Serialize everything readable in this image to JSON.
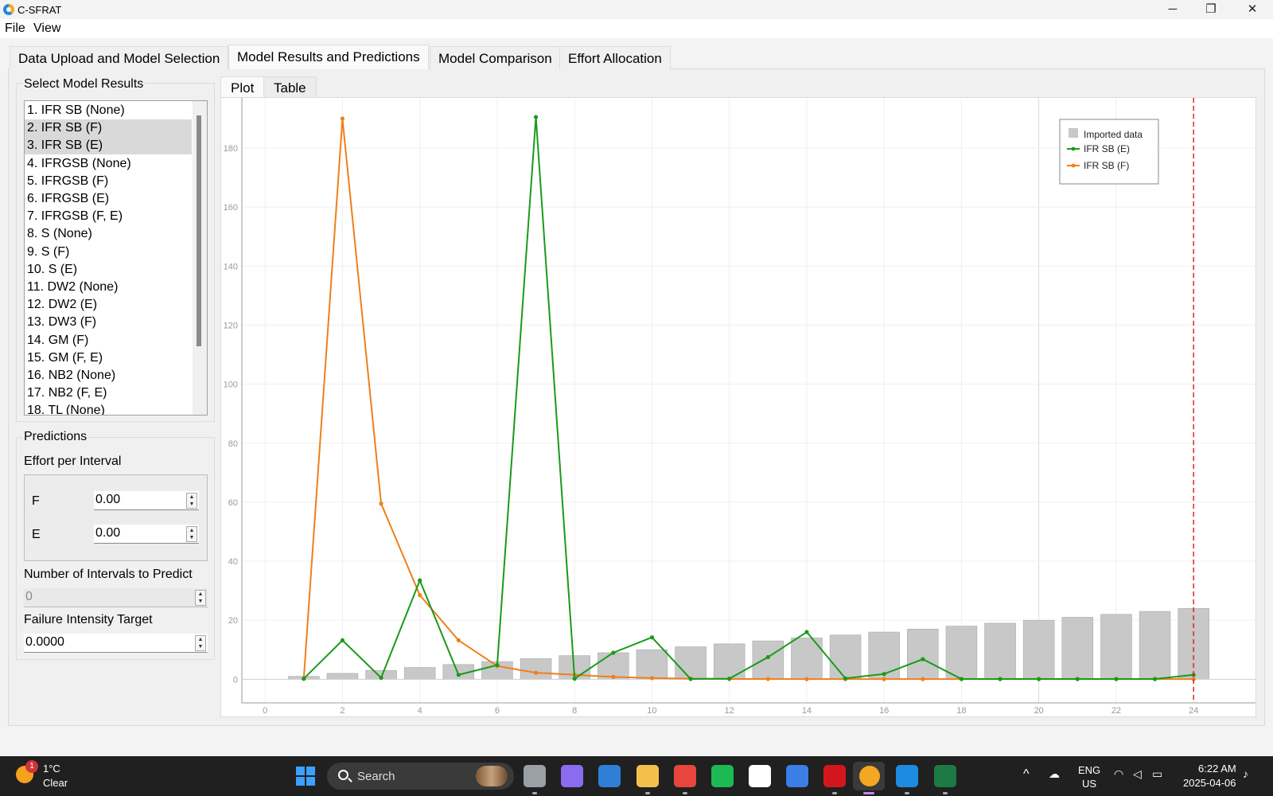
{
  "window": {
    "title": "C-SFRAT",
    "minimize": "─",
    "restore": "❐",
    "close": "✕"
  },
  "menu": [
    "File",
    "View"
  ],
  "tabs": [
    {
      "label": "Data Upload and Model Selection",
      "active": false
    },
    {
      "label": "Model Results and Predictions",
      "active": true
    },
    {
      "label": "Model Comparison",
      "active": false
    },
    {
      "label": "Effort Allocation",
      "active": false
    }
  ],
  "select_model": {
    "title": "Select Model Results",
    "items": [
      {
        "label": "1. IFR SB (None)",
        "selected": false
      },
      {
        "label": "2. IFR SB (F)",
        "selected": true
      },
      {
        "label": "3. IFR SB (E)",
        "selected": true
      },
      {
        "label": "4. IFRGSB (None)",
        "selected": false
      },
      {
        "label": "5. IFRGSB (F)",
        "selected": false
      },
      {
        "label": "6. IFRGSB (E)",
        "selected": false
      },
      {
        "label": "7. IFRGSB (F, E)",
        "selected": false
      },
      {
        "label": "8. S (None)",
        "selected": false
      },
      {
        "label": "9. S (F)",
        "selected": false
      },
      {
        "label": "10. S (E)",
        "selected": false
      },
      {
        "label": "11. DW2 (None)",
        "selected": false
      },
      {
        "label": "12. DW2 (E)",
        "selected": false
      },
      {
        "label": "13. DW3 (F)",
        "selected": false
      },
      {
        "label": "14. GM (F)",
        "selected": false
      },
      {
        "label": "15. GM (F, E)",
        "selected": false
      },
      {
        "label": "16. NB2 (None)",
        "selected": false
      },
      {
        "label": "17. NB2 (F, E)",
        "selected": false
      },
      {
        "label": "18. TL (None)",
        "selected": false
      }
    ]
  },
  "predictions": {
    "title": "Predictions",
    "effort_label": "Effort per Interval",
    "f_label": "F",
    "f_value": "0.00",
    "e_label": "E",
    "e_value": "0.00",
    "intervals_label": "Number of Intervals to Predict",
    "intervals_value": "0",
    "target_label": "Failure Intensity Target",
    "target_value": "0.0000"
  },
  "subtabs": [
    {
      "label": "Plot",
      "active": true
    },
    {
      "label": "Table",
      "active": false
    }
  ],
  "chart_data": {
    "type": "bar+line",
    "x_ticks": [
      0,
      2,
      4,
      6,
      8,
      10,
      12,
      14,
      16,
      18,
      20,
      22,
      24
    ],
    "y_ticks": [
      0,
      20,
      40,
      60,
      80,
      100,
      120,
      140,
      160,
      180
    ],
    "xlim": [
      -0.6,
      25.6
    ],
    "ylim": [
      -8,
      197
    ],
    "grid": true,
    "legend_position": "top-right",
    "bars": {
      "name": "Imported data",
      "color": "#c8c8c8",
      "x": [
        1,
        2,
        3,
        4,
        5,
        6,
        7,
        8,
        9,
        10,
        11,
        12,
        13,
        14,
        15,
        16,
        17,
        18,
        19,
        20,
        21,
        22,
        23,
        24
      ],
      "values": [
        1,
        2,
        3,
        4,
        5,
        6,
        7,
        8,
        9,
        10,
        11,
        12,
        13,
        14,
        15,
        16,
        17,
        18,
        19,
        20,
        21,
        22,
        23,
        24
      ]
    },
    "series": [
      {
        "name": "IFR SB (E)",
        "color": "#1a9a1a",
        "x": [
          1,
          2,
          3,
          4,
          5,
          6,
          7,
          8,
          9,
          10,
          11,
          12,
          13,
          14,
          15,
          16,
          17,
          18,
          19,
          20,
          21,
          22,
          23,
          24
        ],
        "values": [
          0.2,
          13.2,
          0.5,
          33.5,
          1.5,
          4.8,
          190.5,
          0.2,
          9,
          14.2,
          0.1,
          0.2,
          7.5,
          16,
          0.3,
          1.8,
          6.8,
          0.1,
          0.1,
          0.1,
          0.1,
          0.1,
          0.1,
          1.5
        ]
      },
      {
        "name": "IFR SB (F)",
        "color": "#f07f1a",
        "x": [
          1,
          2,
          3,
          4,
          5,
          6,
          7,
          8,
          9,
          10,
          11,
          12,
          13,
          14,
          15,
          16,
          17,
          18,
          19,
          20,
          21,
          22,
          23,
          24
        ],
        "values": [
          0.2,
          190,
          59.5,
          28.5,
          13.2,
          4.5,
          2.2,
          1.5,
          0.8,
          0.4,
          0.2,
          0.1,
          0.1,
          0.05,
          0.05,
          0.05,
          0.05,
          0.05,
          0.05,
          0.05,
          0.05,
          0.05,
          0.05,
          0.05
        ]
      }
    ],
    "marker_line": {
      "x": 24,
      "color": "#e0202a",
      "style": "dashed"
    }
  },
  "taskbar": {
    "weather_temp": "1°C",
    "weather_desc": "Clear",
    "weather_badge": "1",
    "search_label": "Search",
    "lang_top": "ENG",
    "lang_bottom": "US",
    "time": "6:22 AM",
    "date": "2025-04-06",
    "tray_chevron": "^",
    "icons": [
      {
        "name": "task-view-icon",
        "color": "#9aa0a6"
      },
      {
        "name": "copilot-icon",
        "color": "#8b6cf0"
      },
      {
        "name": "ms-store-icon",
        "color": "#2f7fd7"
      },
      {
        "name": "file-explorer-icon",
        "color": "#f3c14b"
      },
      {
        "name": "chrome-icon",
        "color": "#e8453c"
      },
      {
        "name": "spotify-icon",
        "color": "#1db954"
      },
      {
        "name": "notion-icon",
        "color": "#ffffff"
      },
      {
        "name": "todo-icon",
        "color": "#3a7ee6"
      },
      {
        "name": "acrobat-icon",
        "color": "#d4161c"
      },
      {
        "name": "csfrat-icon",
        "color": "#f5a623"
      },
      {
        "name": "vscode-icon",
        "color": "#1d8ce0"
      },
      {
        "name": "excel-icon",
        "color": "#1d7a45"
      }
    ]
  }
}
